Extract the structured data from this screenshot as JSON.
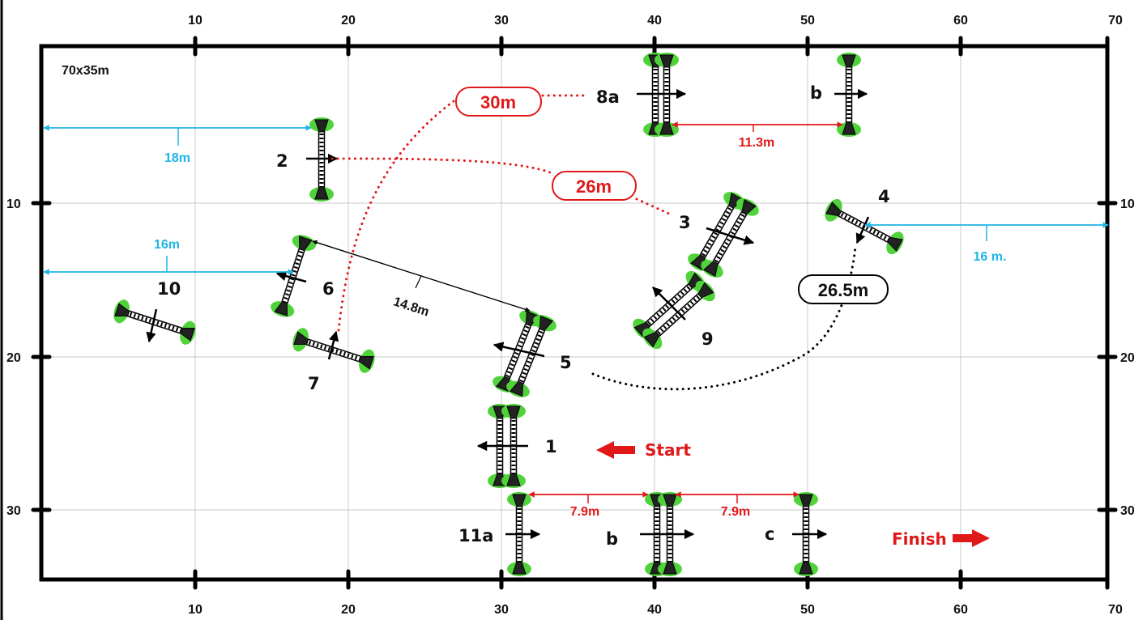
{
  "course": {
    "size_label": "70x35m",
    "x_ticks": [
      "10",
      "20",
      "30",
      "40",
      "50",
      "60",
      "70"
    ],
    "y_ticks": [
      "10",
      "20",
      "30"
    ]
  },
  "obstacles": {
    "o1": "1",
    "o2": "2",
    "o3": "3",
    "o4": "4",
    "o5": "5",
    "o6": "6",
    "o7": "7",
    "o8a": "8a",
    "o8b": "b",
    "o9": "9",
    "o10": "10",
    "o11a": "11a",
    "o11b": "b",
    "o11c": "c"
  },
  "markers": {
    "start": "Start",
    "finish": "Finish"
  },
  "distances": {
    "d_18m": "18m",
    "d_16m_left": "16m",
    "d_16m_right": "16 m.",
    "d_11_3m": "11.3m",
    "d_7_9m_a": "7.9m",
    "d_7_9m_b": "7.9m",
    "d_14_8m": "14.8m",
    "d_30m": "30m",
    "d_26m": "26m",
    "d_26_5m": "26.5m"
  },
  "colors": {
    "red": "#e01818",
    "blue": "#1fb5e5",
    "grass": "#4fd23a",
    "grid": "#c8c8c8"
  }
}
